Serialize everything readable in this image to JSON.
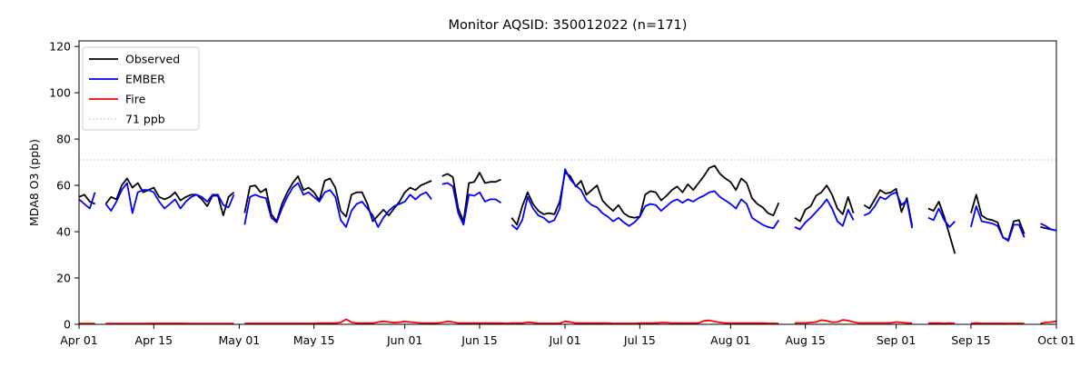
{
  "chart_data": {
    "type": "line",
    "title": "Monitor AQSID: 350012022 (n=171)",
    "ylabel": "MDA8 O3 (ppb)",
    "xlabel": "",
    "ylim": [
      0,
      122.4
    ],
    "yticks": [
      0,
      20,
      40,
      60,
      80,
      100,
      120
    ],
    "x_days_total": 183,
    "x_start_label": "Apr 01",
    "x_end_label": "Oct 01",
    "grid": false,
    "legend_position": "upper left",
    "xticks": [
      {
        "label": "Apr 01",
        "day": 0
      },
      {
        "label": "Apr 15",
        "day": 14
      },
      {
        "label": "May 01",
        "day": 30
      },
      {
        "label": "May 15",
        "day": 44
      },
      {
        "label": "Jun 01",
        "day": 61
      },
      {
        "label": "Jun 15",
        "day": 75
      },
      {
        "label": "Jul 01",
        "day": 91
      },
      {
        "label": "Jul 15",
        "day": 105
      },
      {
        "label": "Aug 01",
        "day": 122
      },
      {
        "label": "Aug 15",
        "day": 136
      },
      {
        "label": "Sep 01",
        "day": 153
      },
      {
        "label": "Sep 15",
        "day": 167
      },
      {
        "label": "Oct 01",
        "day": 183
      }
    ],
    "threshold": {
      "label": "71 ppb",
      "value": 71,
      "color": "#d3d3d3",
      "dash": "dotted"
    },
    "legend": [
      {
        "label": "Observed",
        "color": "#000000",
        "dash": "solid"
      },
      {
        "label": "EMBER",
        "color": "#0000ff",
        "dash": "solid"
      },
      {
        "label": "Fire",
        "color": "#ff0000",
        "dash": "solid"
      },
      {
        "label": "71 ppb",
        "color": "#d3d3d3",
        "dash": "dotted"
      }
    ],
    "series": [
      {
        "name": "Observed",
        "color": "#000000",
        "values": [
          55,
          56,
          53,
          52,
          null,
          52,
          55,
          54,
          60,
          63,
          59,
          61,
          57,
          58,
          59,
          55,
          54,
          55,
          57,
          53.5,
          55,
          56,
          56,
          54,
          51,
          55.5,
          55.5,
          47,
          55,
          57,
          null,
          48,
          59.5,
          60,
          57,
          58.5,
          47.5,
          44.5,
          52,
          57,
          61,
          64,
          58,
          59,
          57,
          53.5,
          62,
          63,
          59,
          49,
          46.5,
          56,
          57,
          57,
          52,
          44.5,
          47,
          49.5,
          47,
          50,
          53,
          57,
          59,
          58,
          60,
          61,
          62,
          null,
          64,
          65,
          63.5,
          50,
          44.5,
          61,
          61.5,
          65.5,
          61,
          61.5,
          61.5,
          62.5,
          null,
          46,
          43,
          51,
          57,
          52,
          49,
          47.5,
          48,
          47.5,
          53,
          65.5,
          64,
          59.5,
          62,
          56,
          58,
          60,
          53.5,
          51,
          49,
          51.5,
          48,
          46.5,
          46,
          46.5,
          56,
          57.5,
          57,
          53.5,
          55.5,
          58,
          59.5,
          57,
          60.5,
          58,
          61,
          64,
          67.5,
          68.5,
          65,
          63,
          61.5,
          58,
          63,
          61,
          54.5,
          52,
          50.5,
          48,
          47,
          52.5,
          null,
          null,
          46,
          44.5,
          49.5,
          51,
          55.5,
          57,
          60,
          56,
          50,
          47.5,
          55,
          48,
          null,
          51.5,
          50,
          54,
          58,
          56.5,
          57,
          58.5,
          48.5,
          54.5,
          42.5,
          null,
          null,
          50,
          49,
          53,
          46.5,
          38.5,
          30.5,
          null,
          null,
          48,
          56,
          47,
          45.5,
          45,
          44,
          37.5,
          36.5,
          44.5,
          45,
          39,
          null,
          null,
          42,
          41.5,
          41,
          40.5
        ]
      },
      {
        "name": "EMBER",
        "color": "#0000ff",
        "values": [
          54,
          52,
          50,
          57,
          null,
          52,
          49,
          53,
          58,
          61,
          48,
          57,
          58,
          58,
          57,
          53,
          50,
          52,
          54,
          50,
          53,
          55,
          56,
          55,
          53,
          56,
          56,
          51.5,
          50.5,
          56,
          null,
          43,
          55,
          56,
          55,
          54.5,
          46,
          44,
          50,
          55,
          59,
          61,
          56,
          57,
          55,
          53,
          57,
          58,
          55,
          45,
          42,
          49,
          52,
          53,
          50,
          47,
          42,
          46,
          49,
          51,
          52,
          53,
          56,
          54,
          56,
          57,
          54,
          null,
          60.5,
          61,
          59.5,
          48,
          43,
          56,
          55.5,
          57,
          53,
          54,
          54,
          52.5,
          null,
          43,
          41,
          45,
          55,
          50,
          47,
          46,
          44,
          45,
          50,
          67,
          62.5,
          60,
          58,
          53.5,
          51.5,
          50.5,
          48,
          46.5,
          44.5,
          46,
          44,
          42.5,
          44,
          46.5,
          51,
          52,
          51.5,
          49,
          51,
          53,
          54,
          52.5,
          54,
          53,
          54.5,
          55.5,
          57,
          57.5,
          55,
          53.5,
          52,
          50,
          54,
          52,
          46,
          44.5,
          43,
          42,
          41.5,
          45,
          null,
          null,
          42,
          41,
          44,
          46,
          48.5,
          51,
          54,
          50,
          44.5,
          42.5,
          49.5,
          45,
          null,
          47,
          48,
          51,
          55,
          54,
          56,
          57,
          51.5,
          53.5,
          41.5,
          null,
          null,
          46,
          45,
          50,
          45,
          42,
          44.5,
          null,
          null,
          42,
          51,
          44.5,
          44,
          43.5,
          42.5,
          37.5,
          36,
          43,
          43,
          37.5,
          null,
          null,
          43.5,
          42.5,
          41,
          40.5
        ]
      },
      {
        "name": "Fire",
        "color": "#ff0000",
        "values": [
          0.3,
          0.3,
          0.3,
          0.3,
          null,
          0.3,
          0.3,
          0.3,
          0.3,
          0.3,
          0.3,
          0.3,
          0.3,
          0.3,
          0.4,
          0.4,
          0.4,
          0.4,
          0.4,
          0.4,
          0.3,
          0.3,
          0.3,
          0.3,
          0.3,
          0.3,
          0.3,
          0.3,
          0.3,
          0.3,
          null,
          0.4,
          0.4,
          0.4,
          0.4,
          0.4,
          0.4,
          0.4,
          0.4,
          0.4,
          0.4,
          0.4,
          0.4,
          0.4,
          0.4,
          0.5,
          0.5,
          0.5,
          0.5,
          0.8,
          2.2,
          0.9,
          0.5,
          0.5,
          0.5,
          0.5,
          1.0,
          1.3,
          1.0,
          0.7,
          0.9,
          1.2,
          1.0,
          0.8,
          0.5,
          0.5,
          0.5,
          0.5,
          0.8,
          1.3,
          1.0,
          0.5,
          0.5,
          0.5,
          0.5,
          0.5,
          0.5,
          0.5,
          0.5,
          0.5,
          0.4,
          0.5,
          0.5,
          0.5,
          0.9,
          0.7,
          0.4,
          0.4,
          0.4,
          0.4,
          0.4,
          1.3,
          1.0,
          0.5,
          0.5,
          0.5,
          0.5,
          0.5,
          0.5,
          0.5,
          0.4,
          0.4,
          0.4,
          0.4,
          0.4,
          0.5,
          0.5,
          0.5,
          0.5,
          0.7,
          0.7,
          0.5,
          0.5,
          0.5,
          0.5,
          0.5,
          0.5,
          1.5,
          1.7,
          1.2,
          0.8,
          0.6,
          0.5,
          0.5,
          0.5,
          0.5,
          0.5,
          0.5,
          0.5,
          0.4,
          0.4,
          0.4,
          null,
          null,
          0.6,
          0.6,
          0.6,
          0.8,
          1.0,
          1.8,
          1.5,
          0.9,
          1.0,
          1.9,
          1.6,
          1.0,
          0.6,
          0.6,
          0.6,
          0.6,
          0.6,
          0.6,
          0.6,
          1.0,
          0.8,
          0.6,
          0.5,
          null,
          null,
          0.5,
          0.5,
          0.5,
          0.4,
          0.5,
          0.4,
          null,
          null,
          0.4,
          0.6,
          0.4,
          0.4,
          0.4,
          0.4,
          0.4,
          0.3,
          0.4,
          0.4,
          0.3,
          null,
          null,
          0.4,
          0.8,
          1.0,
          1.3
        ]
      }
    ]
  }
}
